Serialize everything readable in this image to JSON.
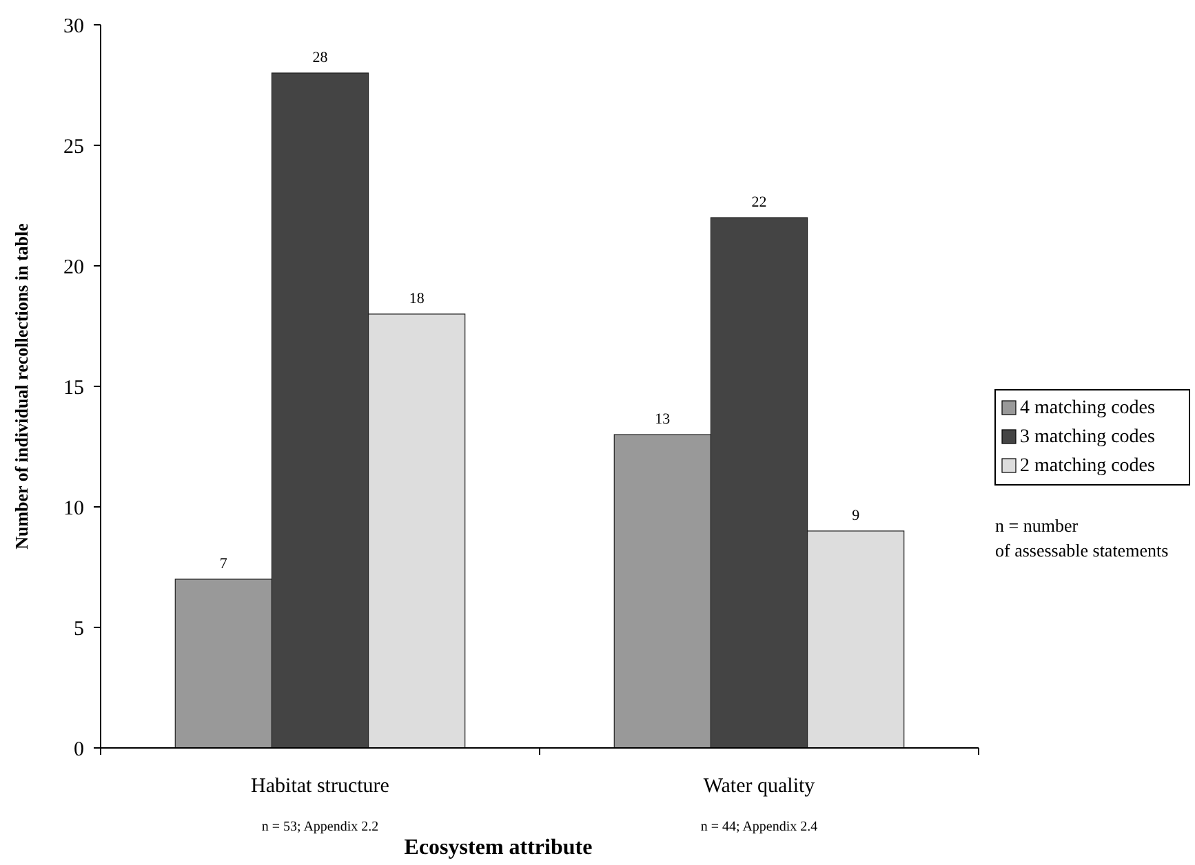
{
  "chart_data": {
    "type": "bar",
    "xlabel": "Ecosystem attribute",
    "ylabel": "Number of individual recollections in table",
    "categories": [
      "Habitat structure",
      "Water quality"
    ],
    "series": [
      {
        "name": "4 matching codes",
        "color": "#999999",
        "values": [
          7,
          13
        ]
      },
      {
        "name": "3 matching codes",
        "color": "#444444",
        "values": [
          28,
          22
        ]
      },
      {
        "name": "2 matching codes",
        "color": "#dddddd",
        "values": [
          18,
          9
        ]
      }
    ],
    "ylim": [
      0,
      30
    ],
    "yticks": [
      0,
      5,
      10,
      15,
      20,
      25,
      30
    ],
    "data_labels": true,
    "legend": "right",
    "grid": false,
    "annotations": [
      "n = 53; Appendix 2.2",
      "n = 44; Appendix 2.4",
      "n = number of assessable statements"
    ]
  }
}
